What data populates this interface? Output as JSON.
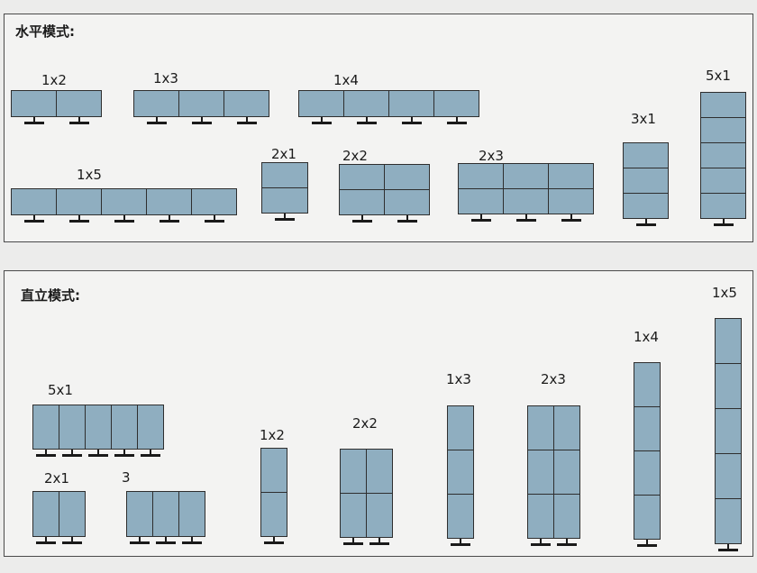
{
  "horizontal_section": {
    "title": "水平模式:",
    "configs": [
      {
        "label": "1x2",
        "rows": 1,
        "cols": 2
      },
      {
        "label": "1x3",
        "rows": 1,
        "cols": 3
      },
      {
        "label": "1x4",
        "rows": 1,
        "cols": 4
      },
      {
        "label": "5x1",
        "rows": 5,
        "cols": 1
      },
      {
        "label": "3x1",
        "rows": 3,
        "cols": 1
      },
      {
        "label": "1x5",
        "rows": 1,
        "cols": 5
      },
      {
        "label": "2x1",
        "rows": 2,
        "cols": 1
      },
      {
        "label": "2x2",
        "rows": 2,
        "cols": 2
      },
      {
        "label": "2x3",
        "rows": 2,
        "cols": 3
      }
    ]
  },
  "vertical_section": {
    "title": "直立模式:",
    "configs": [
      {
        "label": "5x1",
        "rows": 1,
        "cols": 5
      },
      {
        "label": "2x1",
        "rows": 1,
        "cols": 2
      },
      {
        "label": "3",
        "rows": 1,
        "cols": 3
      },
      {
        "label": "1x2",
        "rows": 2,
        "cols": 1
      },
      {
        "label": "2x2",
        "rows": 2,
        "cols": 2
      },
      {
        "label": "1x3",
        "rows": 3,
        "cols": 1
      },
      {
        "label": "2x3",
        "rows": 3,
        "cols": 2
      },
      {
        "label": "1x4",
        "rows": 4,
        "cols": 1
      },
      {
        "label": "1x5",
        "rows": 5,
        "cols": 1
      }
    ]
  }
}
